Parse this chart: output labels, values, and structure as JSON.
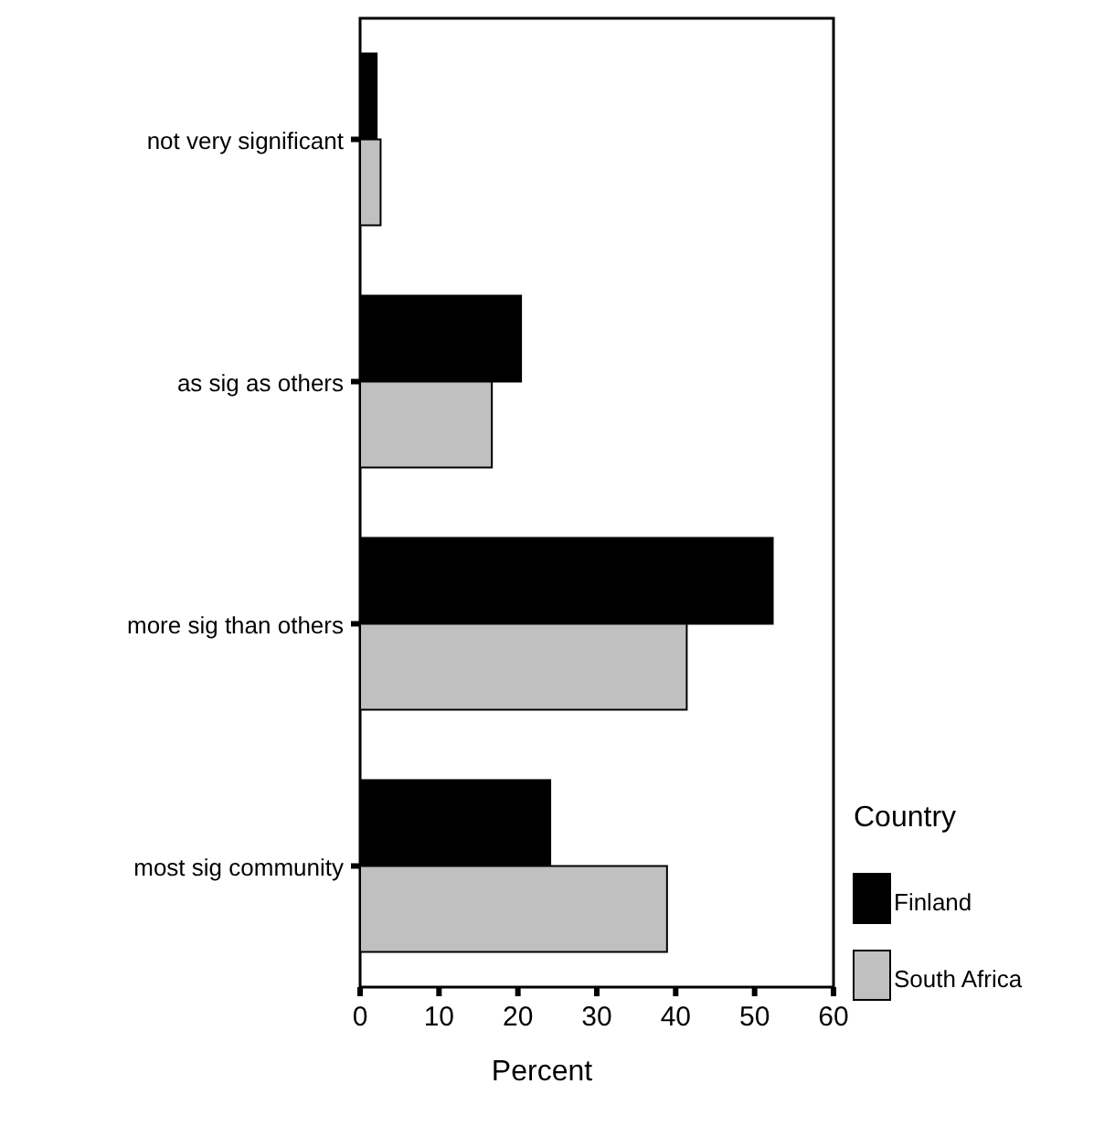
{
  "chart_data": {
    "type": "bar",
    "orientation": "horizontal",
    "categories": [
      "not very significant",
      "as sig as others",
      "more sig than others",
      "most sig community"
    ],
    "series": [
      {
        "name": "Finland",
        "color": "#000000",
        "values": [
          2.1,
          20.4,
          52.3,
          24.1
        ]
      },
      {
        "name": "South Africa",
        "color": "#c0c0c0",
        "values": [
          2.6,
          16.7,
          41.4,
          38.9
        ]
      }
    ],
    "xlabel": "Percent",
    "legend_title": "Country",
    "legend": "bottom right",
    "xlim": [
      0,
      60
    ],
    "xticks": [
      0,
      10,
      20,
      30,
      40,
      50,
      60
    ],
    "grid": false
  }
}
